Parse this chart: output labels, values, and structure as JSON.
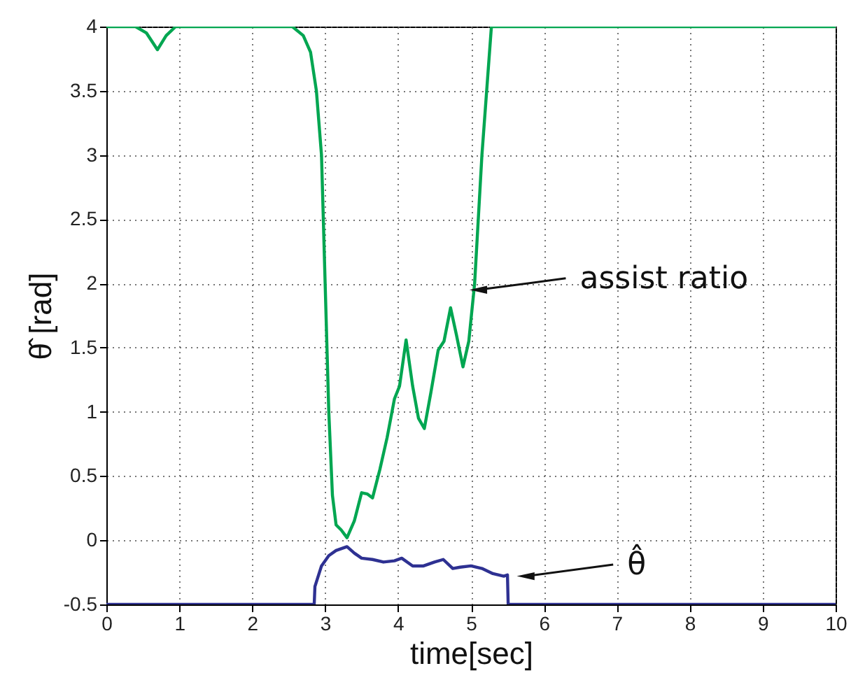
{
  "chart_data": {
    "type": "line",
    "xlabel": "time[sec]",
    "ylabel": "θ̂ [rad]",
    "xlim": [
      0,
      10
    ],
    "xticks": [
      0,
      1,
      2,
      3,
      4,
      5,
      6,
      7,
      8,
      9,
      10
    ],
    "ylim": [
      -0.5,
      4
    ],
    "yticks": [
      -0.5,
      0,
      0.5,
      1,
      1.5,
      2,
      2.5,
      3,
      3.5,
      4
    ],
    "grid": true,
    "line_style": "solid",
    "annotations": [
      {
        "text": "assist ratio",
        "x": 5.1,
        "y": 1.95
      },
      {
        "text": "θ̂",
        "x": 5.75,
        "y": -0.28
      }
    ],
    "series": [
      {
        "color": "#00a651",
        "x": [
          0,
          0.4,
          0.55,
          0.7,
          0.82,
          0.95,
          2.55,
          2.7,
          2.8,
          2.88,
          2.95,
          3.0,
          3.05,
          3.1,
          3.15,
          3.22,
          3.3,
          3.4,
          3.5,
          3.58,
          3.65,
          3.75,
          3.85,
          3.95,
          4.02,
          4.11,
          4.2,
          4.28,
          4.36,
          4.45,
          4.55,
          4.63,
          4.72,
          4.8,
          4.89,
          4.97,
          5.05,
          5.15,
          5.28,
          10
        ],
        "values": [
          4,
          4,
          3.95,
          3.82,
          3.93,
          4,
          4,
          3.93,
          3.8,
          3.5,
          3.0,
          2.0,
          1.0,
          0.35,
          0.12,
          0.08,
          0.02,
          0.15,
          0.37,
          0.36,
          0.33,
          0.55,
          0.8,
          1.1,
          1.2,
          1.56,
          1.2,
          0.95,
          0.87,
          1.15,
          1.48,
          1.55,
          1.81,
          1.6,
          1.35,
          1.55,
          2.0,
          3.0,
          4,
          4
        ]
      },
      {
        "color": "#2e3192",
        "x": [
          0,
          2.85,
          2.86,
          2.95,
          3.05,
          3.15,
          3.3,
          3.4,
          3.5,
          3.65,
          3.8,
          3.95,
          4.05,
          4.2,
          4.35,
          4.5,
          4.62,
          4.75,
          4.85,
          5.0,
          5.15,
          5.3,
          5.45,
          5.5,
          5.51,
          10
        ],
        "values": [
          -0.5,
          -0.5,
          -0.36,
          -0.2,
          -0.12,
          -0.08,
          -0.05,
          -0.1,
          -0.14,
          -0.15,
          -0.17,
          -0.16,
          -0.14,
          -0.2,
          -0.2,
          -0.17,
          -0.15,
          -0.22,
          -0.21,
          -0.2,
          -0.22,
          -0.26,
          -0.28,
          -0.27,
          -0.5,
          -0.5
        ]
      }
    ]
  }
}
